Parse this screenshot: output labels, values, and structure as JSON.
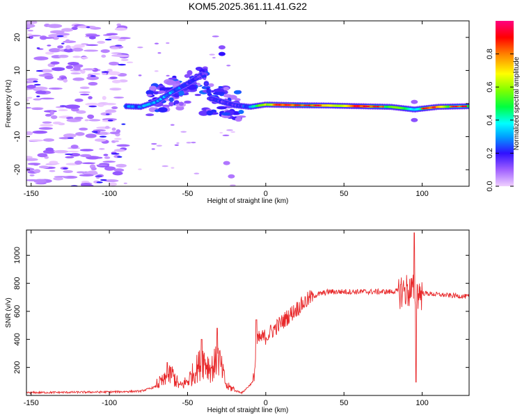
{
  "title": "KOM5.2025.361.11.41.G22",
  "chart_data": [
    {
      "type": "heatmap",
      "name": "spectrogram",
      "xlabel": "Height of straight line (km)",
      "ylabel": "Frequency (Hz)",
      "xlim": [
        -153,
        130
      ],
      "ylim": [
        -25,
        25
      ],
      "xticks": [
        -150,
        -100,
        -50,
        0,
        50,
        100
      ],
      "yticks": [
        -20,
        -10,
        0,
        10,
        20
      ],
      "colorbar": {
        "label": "Normalized spectral amplitude",
        "range": [
          0,
          1
        ],
        "ticks": [
          0.0,
          0.2,
          0.4,
          0.6,
          0.8
        ],
        "stops": [
          "#f0d0ff",
          "#a060ff",
          "#3010ff",
          "#00a0ff",
          "#00ffff",
          "#00ff40",
          "#80ff00",
          "#ffff00",
          "#ff8000",
          "#ff0000",
          "#ff0080"
        ]
      },
      "main_track": [
        {
          "x": -90,
          "freq": -0.8,
          "amp": 0.25
        },
        {
          "x": -80,
          "freq": -1.0,
          "amp": 0.3
        },
        {
          "x": -70,
          "freq": 0.5,
          "amp": 0.3
        },
        {
          "x": -60,
          "freq": 3.5,
          "amp": 0.3
        },
        {
          "x": -50,
          "freq": 6.0,
          "amp": 0.2
        },
        {
          "x": -40,
          "freq": 9.0,
          "amp": 0.15
        },
        {
          "x": -35,
          "freq": 1.5,
          "amp": 0.2
        },
        {
          "x": -20,
          "freq": -0.5,
          "amp": 0.15
        },
        {
          "x": -10,
          "freq": -1.0,
          "amp": 0.3
        },
        {
          "x": 0,
          "freq": -0.3,
          "amp": 0.6
        },
        {
          "x": 20,
          "freq": -0.5,
          "amp": 0.7
        },
        {
          "x": 40,
          "freq": -0.6,
          "amp": 0.65
        },
        {
          "x": 60,
          "freq": -0.8,
          "amp": 0.7
        },
        {
          "x": 80,
          "freq": -1.0,
          "amp": 0.65
        },
        {
          "x": 95,
          "freq": -1.8,
          "amp": 0.4
        },
        {
          "x": 110,
          "freq": -1.0,
          "amp": 0.6
        },
        {
          "x": 130,
          "freq": -0.8,
          "amp": 0.55
        }
      ]
    },
    {
      "type": "line",
      "name": "snr",
      "xlabel": "Height of straight line (km)",
      "ylabel": "SNR (v/v)",
      "xlim": [
        -153,
        130
      ],
      "ylim": [
        0,
        1180
      ],
      "xticks": [
        -150,
        -100,
        -50,
        0,
        50,
        100
      ],
      "yticks": [
        200,
        400,
        600,
        800,
        1000
      ],
      "color": "#e8282a",
      "series_envelope": [
        {
          "x": -153,
          "y": 20
        },
        {
          "x": -100,
          "y": 25
        },
        {
          "x": -80,
          "y": 30
        },
        {
          "x": -65,
          "y": 80
        },
        {
          "x": -60,
          "y": 120
        },
        {
          "x": -55,
          "y": 50
        },
        {
          "x": -50,
          "y": 80
        },
        {
          "x": -40,
          "y": 200
        },
        {
          "x": -35,
          "y": 150
        },
        {
          "x": -30,
          "y": 200
        },
        {
          "x": -25,
          "y": 50
        },
        {
          "x": -15,
          "y": 20
        },
        {
          "x": -8,
          "y": 100
        },
        {
          "x": -5,
          "y": 400
        },
        {
          "x": 0,
          "y": 420
        },
        {
          "x": 10,
          "y": 520
        },
        {
          "x": 20,
          "y": 620
        },
        {
          "x": 30,
          "y": 710
        },
        {
          "x": 40,
          "y": 740
        },
        {
          "x": 60,
          "y": 740
        },
        {
          "x": 80,
          "y": 740
        },
        {
          "x": 90,
          "y": 750
        },
        {
          "x": 100,
          "y": 730
        },
        {
          "x": 115,
          "y": 715
        },
        {
          "x": 130,
          "y": 705
        }
      ],
      "peaks": [
        {
          "x": -63,
          "y": 235
        },
        {
          "x": -41,
          "y": 400
        },
        {
          "x": -31,
          "y": 480
        },
        {
          "x": -6,
          "y": 540
        },
        {
          "x": 95,
          "y": 1160
        },
        {
          "x": 96,
          "y": 95
        }
      ]
    }
  ]
}
